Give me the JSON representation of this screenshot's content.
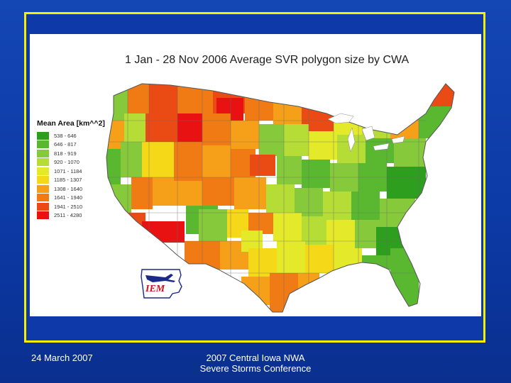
{
  "slide": {
    "footer_left": "24 March 2007",
    "footer_center_line1": "2007 Central Iowa NWA",
    "footer_center_line2": "Severe Storms Conference",
    "border_color": "#f4f000",
    "background_color": "#0d3aa8"
  },
  "map": {
    "title": "1 Jan - 28 Nov 2006 Average SVR polygon size by CWA",
    "logo_text": "IEM",
    "legend": {
      "title": "Mean Area [km^^2]",
      "items": [
        {
          "label": "538 - 646",
          "color": "#2e9e1e"
        },
        {
          "label": "646 - 817",
          "color": "#5ab830"
        },
        {
          "label": "818 - 919",
          "color": "#86c93a"
        },
        {
          "label": "920 - 1070",
          "color": "#b6dc36"
        },
        {
          "label": "1071 - 1184",
          "color": "#e4ea2a"
        },
        {
          "label": "1185 - 1307",
          "color": "#f5d818"
        },
        {
          "label": "1308 - 1640",
          "color": "#f5a018"
        },
        {
          "label": "1641 - 1940",
          "color": "#f07a14"
        },
        {
          "label": "1941 - 2510",
          "color": "#ea4a14"
        },
        {
          "label": "2511 - 4280",
          "color": "#e81212"
        }
      ]
    }
  }
}
